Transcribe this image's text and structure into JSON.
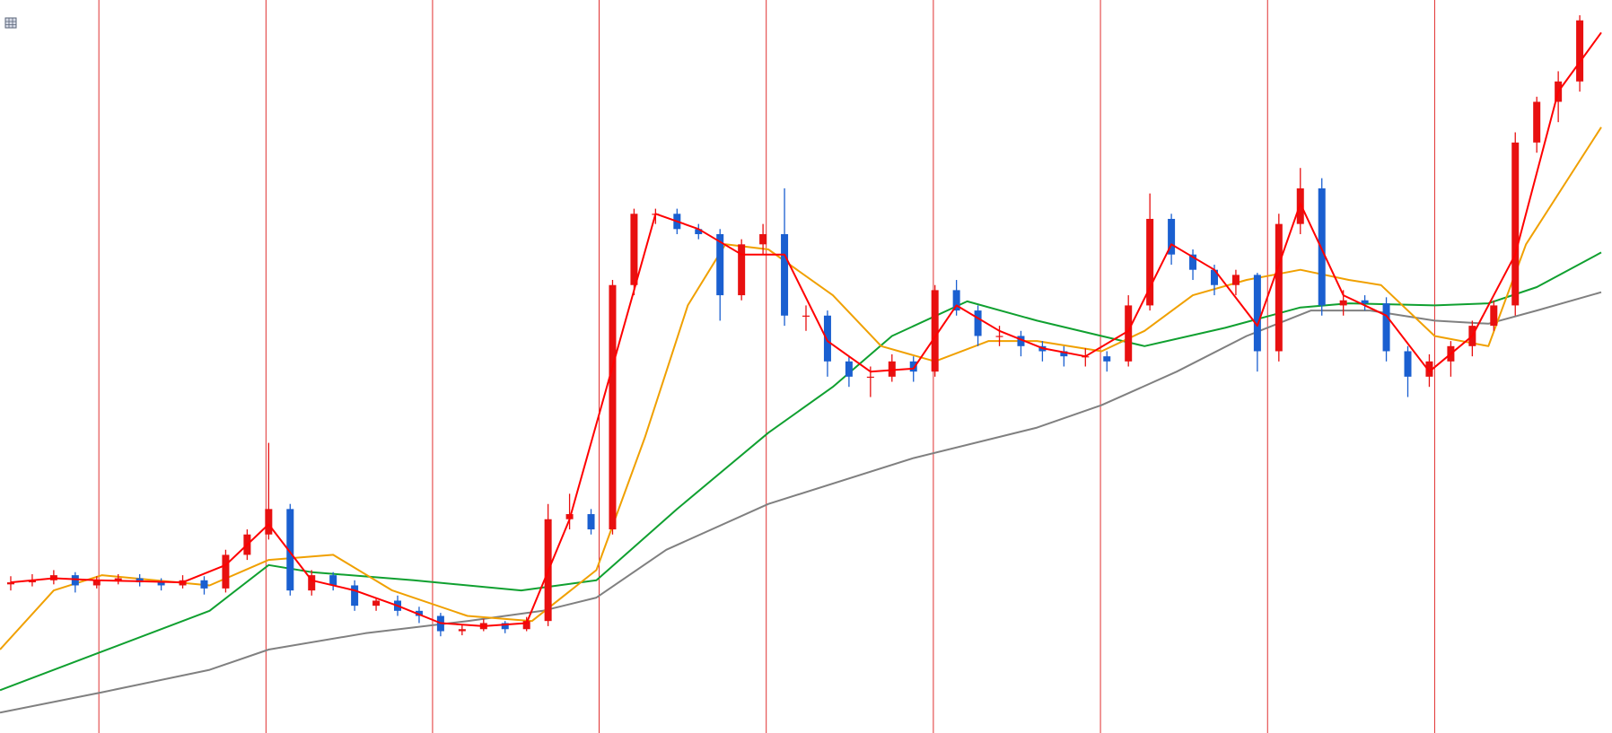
{
  "chart_data": {
    "type": "candlestick",
    "xlim": [
      0,
      300
    ],
    "ylim": [
      0,
      720
    ],
    "up_color": "#e81010",
    "down_color": "#1a5fd0",
    "separator_color": "#e03030",
    "separators": [
      18.4,
      49.5,
      80.5,
      111.5,
      142.6,
      173.7,
      204.8,
      235.9,
      267
    ],
    "x": [
      2,
      6,
      10,
      14,
      18,
      22,
      26,
      30,
      34,
      38,
      42,
      46,
      50,
      54,
      58,
      62,
      66,
      70,
      74,
      78,
      82,
      86,
      90,
      94,
      98,
      102,
      106,
      110,
      114,
      118,
      122,
      126,
      130,
      134,
      138,
      142,
      146,
      150,
      154,
      158,
      162,
      166,
      170,
      174,
      178,
      182,
      186,
      190,
      194,
      198,
      202,
      206,
      210,
      214,
      218,
      222,
      226,
      230,
      234,
      238,
      242,
      246,
      250,
      254,
      258,
      262,
      266,
      270,
      274,
      278,
      282,
      286,
      290,
      294
    ],
    "open": [
      146,
      148,
      150,
      155,
      145,
      150,
      152,
      148,
      145,
      150,
      142,
      175,
      195,
      220,
      140,
      155,
      145,
      125,
      130,
      120,
      115,
      100,
      102,
      108,
      102,
      110,
      210,
      215,
      200,
      440,
      510,
      510,
      495,
      490,
      430,
      480,
      490,
      410,
      410,
      365,
      350,
      350,
      365,
      355,
      435,
      415,
      390,
      390,
      380,
      375,
      370,
      370,
      365,
      420,
      505,
      470,
      455,
      440,
      450,
      375,
      500,
      535,
      420,
      425,
      422,
      375,
      350,
      365,
      380,
      400,
      420,
      580,
      620,
      640
    ],
    "high": [
      154,
      156,
      160,
      158,
      154,
      156,
      156,
      152,
      155,
      154,
      180,
      200,
      285,
      225,
      160,
      158,
      150,
      132,
      135,
      124,
      118,
      106,
      112,
      110,
      114,
      225,
      235,
      220,
      445,
      515,
      515,
      515,
      500,
      495,
      485,
      500,
      535,
      420,
      415,
      370,
      360,
      372,
      370,
      440,
      445,
      420,
      400,
      395,
      385,
      380,
      378,
      375,
      430,
      530,
      510,
      475,
      460,
      455,
      452,
      510,
      555,
      545,
      435,
      430,
      428,
      380,
      372,
      385,
      405,
      425,
      590,
      625,
      650,
      705
    ],
    "low": [
      140,
      144,
      146,
      138,
      142,
      146,
      144,
      140,
      142,
      136,
      138,
      170,
      190,
      135,
      135,
      140,
      120,
      120,
      115,
      108,
      95,
      96,
      100,
      98,
      100,
      105,
      200,
      195,
      195,
      430,
      500,
      490,
      485,
      405,
      425,
      470,
      400,
      395,
      350,
      340,
      330,
      345,
      345,
      350,
      410,
      380,
      380,
      370,
      365,
      360,
      360,
      355,
      360,
      415,
      460,
      445,
      430,
      430,
      355,
      365,
      490,
      410,
      410,
      415,
      365,
      330,
      340,
      350,
      370,
      395,
      410,
      570,
      600,
      630
    ],
    "close": [
      148,
      150,
      155,
      145,
      150,
      152,
      148,
      145,
      150,
      142,
      175,
      195,
      220,
      140,
      155,
      145,
      125,
      130,
      120,
      115,
      100,
      102,
      108,
      102,
      110,
      210,
      215,
      200,
      440,
      510,
      510,
      495,
      490,
      430,
      480,
      490,
      410,
      410,
      365,
      350,
      350,
      365,
      355,
      435,
      415,
      390,
      390,
      380,
      375,
      370,
      370,
      365,
      420,
      505,
      470,
      455,
      440,
      450,
      375,
      500,
      535,
      420,
      425,
      422,
      375,
      350,
      365,
      380,
      400,
      420,
      580,
      620,
      640,
      700
    ],
    "lines": [
      {
        "color": "#808080",
        "x": [
          0,
          19,
          39,
          50,
          68,
          87,
          101,
          111,
          124,
          143,
          170,
          193,
          205,
          219,
          232,
          244,
          255,
          267,
          277,
          286,
          298
        ],
        "values": [
          20,
          40,
          62,
          82,
          98,
          110,
          120,
          133,
          180,
          225,
          270,
          300,
          322,
          355,
          390,
          415,
          415,
          405,
          402,
          415,
          433
        ]
      },
      {
        "color": "#10a030",
        "x": [
          0,
          19,
          39,
          50,
          58,
          77,
          97,
          111,
          126,
          143,
          155,
          166,
          180,
          193,
          205,
          213,
          228,
          242,
          251,
          267,
          277,
          286,
          298
        ],
        "values": [
          42,
          80,
          120,
          165,
          158,
          150,
          140,
          150,
          220,
          295,
          340,
          390,
          424,
          405,
          390,
          380,
          398,
          418,
          422,
          420,
          422,
          438,
          472
        ]
      },
      {
        "color": "#f0a000",
        "x": [
          0,
          10,
          19,
          39,
          50,
          62,
          73,
          87,
          99,
          111,
          120,
          128,
          135,
          143,
          155,
          164,
          174,
          184,
          193,
          205,
          213,
          222,
          232,
          242,
          251,
          257,
          267,
          277,
          284,
          298
        ],
        "values": [
          82,
          140,
          155,
          145,
          170,
          175,
          140,
          115,
          110,
          160,
          290,
          420,
          480,
          475,
          430,
          380,
          365,
          385,
          385,
          375,
          395,
          430,
          445,
          455,
          445,
          440,
          390,
          380,
          480,
          595
        ]
      },
      {
        "color": "#ff0000",
        "x": [
          2,
          10,
          18,
          26,
          34,
          42,
          50,
          58,
          66,
          74,
          82,
          90,
          98,
          106,
          114,
          122,
          130,
          138,
          146,
          154,
          162,
          170,
          178,
          186,
          194,
          202,
          210,
          218,
          226,
          234,
          242,
          250,
          258,
          266,
          274,
          282,
          290,
          298
        ],
        "values": [
          148,
          152,
          150,
          149,
          148,
          165,
          205,
          150,
          140,
          125,
          108,
          105,
          108,
          210,
          360,
          510,
          495,
          470,
          470,
          385,
          355,
          358,
          420,
          395,
          378,
          370,
          395,
          480,
          455,
          400,
          520,
          430,
          410,
          355,
          390,
          470,
          630,
          688
        ]
      }
    ]
  }
}
